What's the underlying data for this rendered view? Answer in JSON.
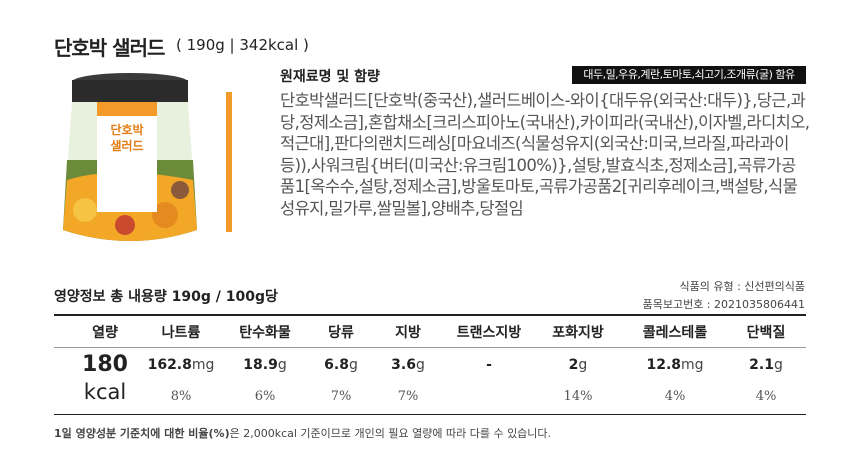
{
  "header": {
    "title": "단호박 샐러드",
    "spec": "( 190g | 342kcal )"
  },
  "product": {
    "jar_label": [
      "단호박",
      "샐러드"
    ]
  },
  "ingredients": {
    "heading": "원재료명 및 함량",
    "allergen": "대두,밀,우유,계란,토마토,쇠고기,조개류(굴) 함유",
    "text": "단호박샐러드[단호박(중국산),샐러드베이스-와이{대두유(외국산:대두)},당근,과당,정제소금],혼합채소[크리스피아노(국내산),카이피라(국내산),이자벨,라디치오,적근대],판다의랜치드레싱[마요네즈(식물성유지(외국산:미국,브라질,파라과이 등)),사워크림{버터(미국산:유크림100%)},설탕,발효식초,정제소금],곡류가공품1[옥수수,설탕,정제소금],방울토마토,곡류가공품2[귀리후레이크,백설탕,식물성유지,밀가루,쌀밀볼],양배추,당절임"
  },
  "nutrition": {
    "heading": "영양정보 총 내용량 190g / 100g당",
    "food_type": "식품의 유형 : 신선편의식품",
    "report_no": "품목보고번호 : 2021035806441",
    "columns": [
      {
        "name": "열량",
        "amount": "180",
        "unit": "kcal"
      },
      {
        "name": "나트륨",
        "amount": "162.8",
        "unit": "mg",
        "percent": "8%"
      },
      {
        "name": "탄수화물",
        "amount": "18.9",
        "unit": "g",
        "percent": "6%"
      },
      {
        "name": "당류",
        "amount": "6.8",
        "unit": "g",
        "percent": "7%"
      },
      {
        "name": "지방",
        "amount": "3.6",
        "unit": "g",
        "percent": "7%"
      },
      {
        "name": "트랜스지방",
        "amount": "-"
      },
      {
        "name": "포화지방",
        "amount": "2",
        "unit": "g",
        "percent": "14%"
      },
      {
        "name": "콜레스테롤",
        "amount": "12.8",
        "unit": "mg",
        "percent": "4%"
      },
      {
        "name": "단백질",
        "amount": "2.1",
        "unit": "g",
        "percent": "4%"
      }
    ],
    "footnote": {
      "bold": "1일 영양성분 기준치에 대한 비율(%)",
      "text": "은 2,000kcal 기준이므로 개인의 필요 열량에 따라 다를 수 있습니다."
    }
  }
}
